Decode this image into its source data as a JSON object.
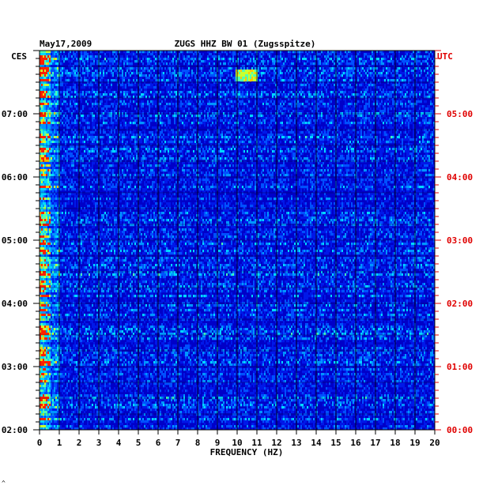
{
  "chart_data": {
    "type": "heatmap",
    "title_date": "May17,2009",
    "title_station": "ZUGS HHZ BW 01 (Zugsspitze)",
    "left_axis_label": "CES",
    "right_axis_label": "UTC",
    "xlabel": "FREQUENCY (HZ)",
    "x_ticks": [
      "0",
      "1",
      "2",
      "3",
      "4",
      "5",
      "6",
      "7",
      "8",
      "9",
      "10",
      "11",
      "12",
      "13",
      "14",
      "15",
      "16",
      "17",
      "18",
      "19",
      "20"
    ],
    "xlim": [
      0,
      20
    ],
    "ylim_local_hours": [
      2,
      8
    ],
    "y_ticks_local": [
      "07:00",
      "06:00",
      "05:00",
      "04:00",
      "03:00",
      "02:00"
    ],
    "y_ticks_utc": [
      "05:00",
      "04:00",
      "03:00",
      "02:00",
      "01:00",
      "00:00"
    ],
    "colors": {
      "background": "#0000c8",
      "label_black": "#000000",
      "label_red": "#e00000"
    }
  },
  "footer_mark": "^"
}
